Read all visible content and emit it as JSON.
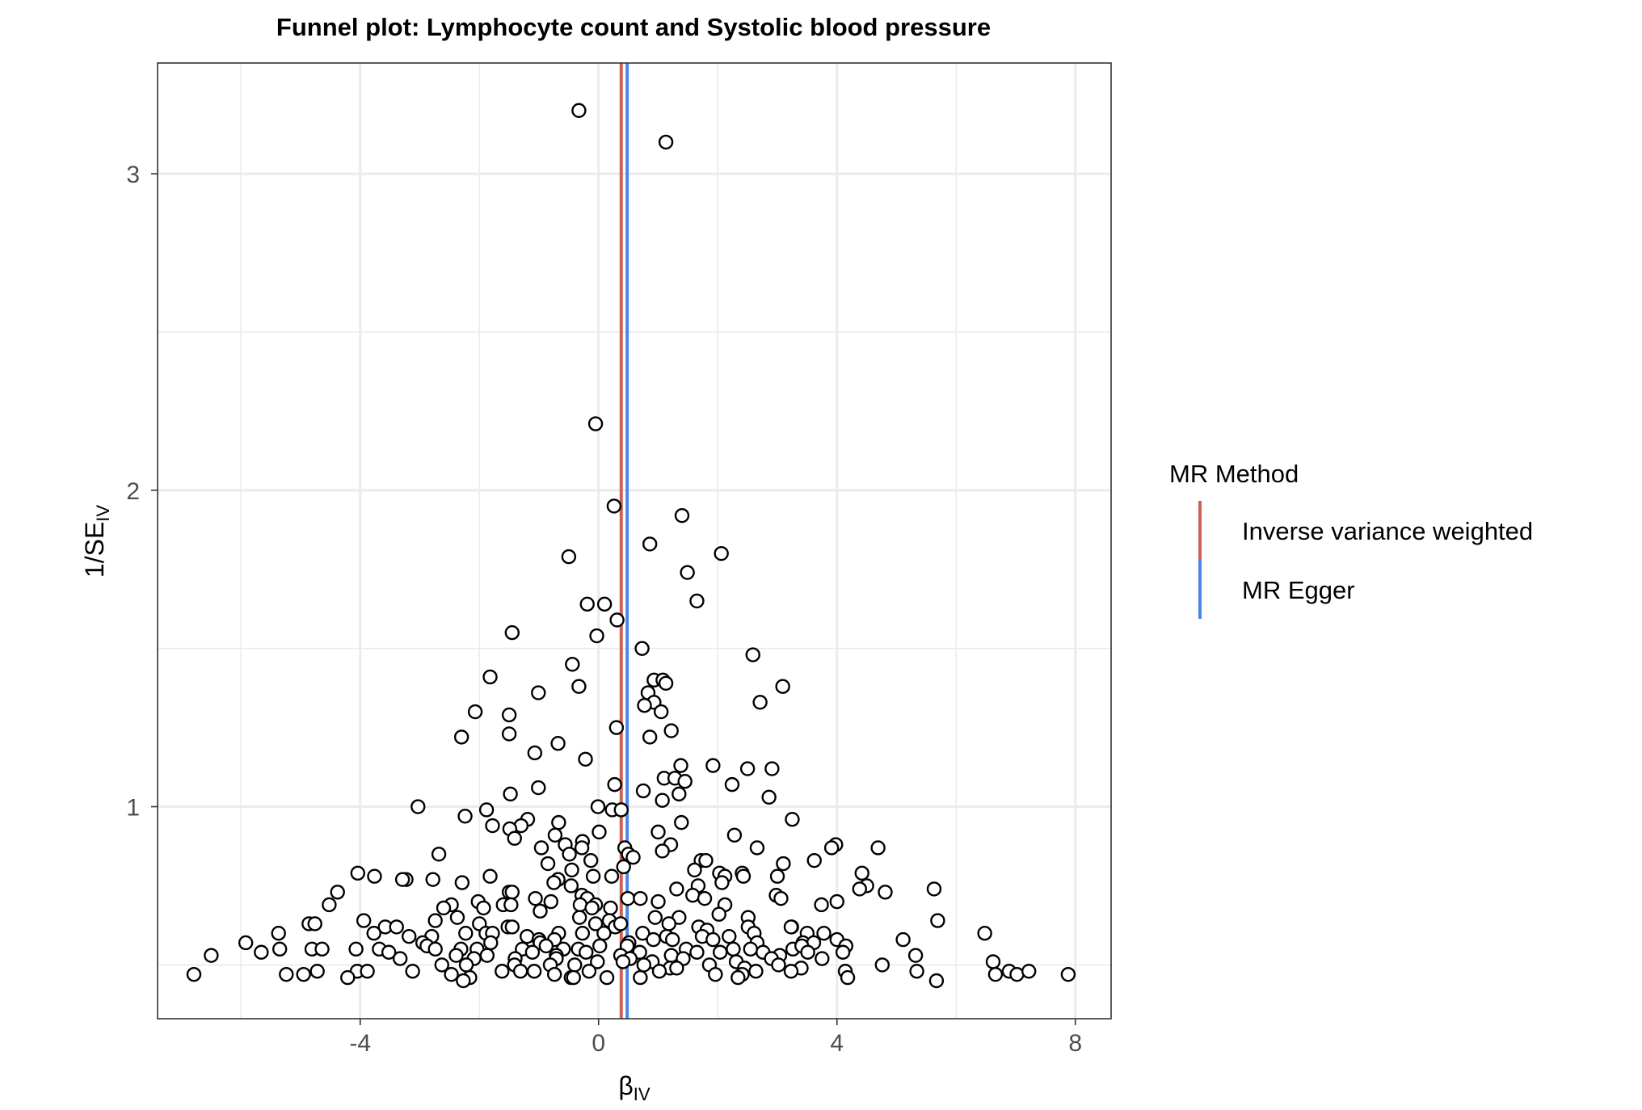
{
  "chart_data": {
    "type": "scatter",
    "title": "Funnel plot: Lymphocyte count and Systolic blood pressure",
    "xlabel": {
      "main": "β",
      "sub": "IV"
    },
    "ylabel": {
      "main": "1/SE",
      "sub": "IV"
    },
    "xlim": [
      -7.4,
      8.6
    ],
    "ylim": [
      0.33,
      3.35
    ],
    "x_ticks": [
      -4,
      0,
      4,
      8
    ],
    "x_tick_labels": [
      "-4",
      "0",
      "4",
      "8"
    ],
    "y_ticks": [
      1,
      2,
      3
    ],
    "y_tick_labels": [
      "1",
      "2",
      "3"
    ],
    "grid": true,
    "legend": {
      "title": "MR Method",
      "position": "right",
      "entries": [
        {
          "label": "Inverse variance weighted",
          "color": "#CD6155"
        },
        {
          "label": "MR Egger",
          "color": "#4A86E8"
        }
      ]
    },
    "lines": [
      {
        "name": "Inverse variance weighted",
        "x": 0.38,
        "color": "#CD6155"
      },
      {
        "name": "MR Egger",
        "x": 0.48,
        "color": "#4A86E8"
      }
    ],
    "point_style": {
      "fill": "#ffffff",
      "stroke": "#000000"
    },
    "points": [
      [
        -0.33,
        3.2
      ],
      [
        1.13,
        3.1
      ],
      [
        -0.05,
        2.21
      ],
      [
        0.26,
        1.95
      ],
      [
        1.4,
        1.92
      ],
      [
        0.86,
        1.83
      ],
      [
        -0.5,
        1.79
      ],
      [
        2.06,
        1.8
      ],
      [
        1.49,
        1.74
      ],
      [
        1.65,
        1.65
      ],
      [
        -0.19,
        1.64
      ],
      [
        0.1,
        1.64
      ],
      [
        0.31,
        1.59
      ],
      [
        -1.45,
        1.55
      ],
      [
        -0.03,
        1.54
      ],
      [
        0.73,
        1.5
      ],
      [
        2.59,
        1.48
      ],
      [
        -0.44,
        1.45
      ],
      [
        -1.82,
        1.41
      ],
      [
        0.93,
        1.4
      ],
      [
        1.08,
        1.4
      ],
      [
        1.13,
        1.39
      ],
      [
        -0.33,
        1.38
      ],
      [
        3.09,
        1.38
      ],
      [
        0.83,
        1.36
      ],
      [
        -1.01,
        1.36
      ],
      [
        0.93,
        1.33
      ],
      [
        2.71,
        1.33
      ],
      [
        0.77,
        1.32
      ],
      [
        1.05,
        1.3
      ],
      [
        -2.07,
        1.3
      ],
      [
        -1.5,
        1.29
      ],
      [
        0.3,
        1.25
      ],
      [
        1.22,
        1.24
      ],
      [
        -1.5,
        1.23
      ],
      [
        -2.3,
        1.22
      ],
      [
        0.86,
        1.22
      ],
      [
        -0.68,
        1.2
      ],
      [
        -1.07,
        1.17
      ],
      [
        -0.22,
        1.15
      ],
      [
        1.92,
        1.13
      ],
      [
        1.38,
        1.13
      ],
      [
        2.5,
        1.12
      ],
      [
        2.91,
        1.12
      ],
      [
        1.1,
        1.09
      ],
      [
        1.28,
        1.09
      ],
      [
        1.45,
        1.08
      ],
      [
        2.24,
        1.07
      ],
      [
        0.27,
        1.07
      ],
      [
        -1.01,
        1.06
      ],
      [
        0.75,
        1.05
      ],
      [
        -1.48,
        1.04
      ],
      [
        1.35,
        1.04
      ],
      [
        2.86,
        1.03
      ],
      [
        1.07,
        1.02
      ],
      [
        -3.03,
        1.0
      ],
      [
        -0.01,
        1.0
      ],
      [
        0.23,
        0.99
      ],
      [
        0.38,
        0.99
      ],
      [
        -1.88,
        0.99
      ],
      [
        -2.24,
        0.97
      ],
      [
        3.25,
        0.96
      ],
      [
        1.39,
        0.95
      ],
      [
        -0.67,
        0.95
      ],
      [
        -1.19,
        0.96
      ],
      [
        -1.78,
        0.94
      ],
      [
        -1.3,
        0.94
      ],
      [
        -1.49,
        0.93
      ],
      [
        1.0,
        0.92
      ],
      [
        0.01,
        0.92
      ],
      [
        -0.73,
        0.91
      ],
      [
        2.28,
        0.91
      ],
      [
        -1.41,
        0.9
      ],
      [
        -0.27,
        0.89
      ],
      [
        0.44,
        0.87
      ],
      [
        -0.56,
        0.88
      ],
      [
        -0.96,
        0.87
      ],
      [
        1.21,
        0.88
      ],
      [
        -0.28,
        0.87
      ],
      [
        2.66,
        0.87
      ],
      [
        3.98,
        0.88
      ],
      [
        4.69,
        0.87
      ],
      [
        0.5,
        0.85
      ],
      [
        1.07,
        0.86
      ],
      [
        3.91,
        0.87
      ],
      [
        -2.68,
        0.85
      ],
      [
        -0.49,
        0.85
      ],
      [
        0.58,
        0.84
      ],
      [
        -0.13,
        0.83
      ],
      [
        1.72,
        0.83
      ],
      [
        1.8,
        0.83
      ],
      [
        3.62,
        0.83
      ],
      [
        -0.85,
        0.82
      ],
      [
        3.1,
        0.82
      ],
      [
        0.42,
        0.81
      ],
      [
        1.61,
        0.8
      ],
      [
        -0.45,
        0.8
      ],
      [
        0.22,
        0.78
      ],
      [
        -0.09,
        0.78
      ],
      [
        2.03,
        0.79
      ],
      [
        2.41,
        0.79
      ],
      [
        4.42,
        0.79
      ],
      [
        2.12,
        0.78
      ],
      [
        -4.04,
        0.79
      ],
      [
        -3.76,
        0.78
      ],
      [
        -3.23,
        0.77
      ],
      [
        -1.82,
        0.78
      ],
      [
        -0.68,
        0.77
      ],
      [
        3.0,
        0.78
      ],
      [
        2.43,
        0.78
      ],
      [
        -0.75,
        0.76
      ],
      [
        -3.29,
        0.77
      ],
      [
        -2.78,
        0.77
      ],
      [
        -0.46,
        0.75
      ],
      [
        1.67,
        0.75
      ],
      [
        2.07,
        0.76
      ],
      [
        4.5,
        0.75
      ],
      [
        4.38,
        0.74
      ],
      [
        4.81,
        0.73
      ],
      [
        -4.38,
        0.73
      ],
      [
        -2.29,
        0.76
      ],
      [
        1.31,
        0.74
      ],
      [
        -1.5,
        0.73
      ],
      [
        -0.28,
        0.72
      ],
      [
        1.58,
        0.72
      ],
      [
        -1.45,
        0.73
      ],
      [
        1.78,
        0.71
      ],
      [
        -0.19,
        0.71
      ],
      [
        0.49,
        0.71
      ],
      [
        0.7,
        0.71
      ],
      [
        1.0,
        0.7
      ],
      [
        2.98,
        0.72
      ],
      [
        3.06,
        0.71
      ],
      [
        -1.06,
        0.71
      ],
      [
        -0.8,
        0.7
      ],
      [
        5.63,
        0.74
      ],
      [
        -2.47,
        0.69
      ],
      [
        -2.02,
        0.7
      ],
      [
        -0.31,
        0.69
      ],
      [
        -4.52,
        0.69
      ],
      [
        -2.6,
        0.68
      ],
      [
        -1.93,
        0.68
      ],
      [
        -1.6,
        0.69
      ],
      [
        -0.05,
        0.69
      ],
      [
        2.12,
        0.69
      ],
      [
        4.0,
        0.7
      ],
      [
        3.74,
        0.69
      ],
      [
        -1.47,
        0.69
      ],
      [
        0.2,
        0.68
      ],
      [
        2.02,
        0.66
      ],
      [
        2.51,
        0.65
      ],
      [
        -0.98,
        0.67
      ],
      [
        -0.11,
        0.68
      ],
      [
        -2.37,
        0.65
      ],
      [
        -0.32,
        0.65
      ],
      [
        0.18,
        0.64
      ],
      [
        0.95,
        0.65
      ],
      [
        -2.74,
        0.64
      ],
      [
        -2.0,
        0.63
      ],
      [
        1.35,
        0.65
      ],
      [
        -3.94,
        0.64
      ],
      [
        -4.86,
        0.63
      ],
      [
        -4.76,
        0.63
      ],
      [
        -3.58,
        0.62
      ],
      [
        -3.39,
        0.62
      ],
      [
        -1.52,
        0.62
      ],
      [
        -1.45,
        0.62
      ],
      [
        -0.05,
        0.63
      ],
      [
        0.28,
        0.62
      ],
      [
        0.37,
        0.63
      ],
      [
        1.18,
        0.63
      ],
      [
        1.68,
        0.62
      ],
      [
        2.51,
        0.62
      ],
      [
        3.24,
        0.62
      ],
      [
        5.69,
        0.64
      ],
      [
        6.48,
        0.6
      ],
      [
        -5.37,
        0.6
      ],
      [
        -3.77,
        0.6
      ],
      [
        -3.18,
        0.59
      ],
      [
        -2.8,
        0.59
      ],
      [
        -2.23,
        0.6
      ],
      [
        -1.89,
        0.6
      ],
      [
        -1.78,
        0.6
      ],
      [
        -1.2,
        0.59
      ],
      [
        -0.67,
        0.6
      ],
      [
        -0.27,
        0.6
      ],
      [
        0.09,
        0.6
      ],
      [
        0.74,
        0.6
      ],
      [
        1.14,
        0.59
      ],
      [
        1.82,
        0.61
      ],
      [
        2.19,
        0.59
      ],
      [
        2.61,
        0.6
      ],
      [
        3.23,
        0.62
      ],
      [
        3.5,
        0.6
      ],
      [
        3.78,
        0.6
      ],
      [
        1.74,
        0.59
      ],
      [
        -0.74,
        0.58
      ],
      [
        -2.95,
        0.57
      ],
      [
        -1.81,
        0.57
      ],
      [
        -1.0,
        0.58
      ],
      [
        -0.98,
        0.57
      ],
      [
        0.51,
        0.57
      ],
      [
        0.92,
        0.58
      ],
      [
        1.24,
        0.58
      ],
      [
        1.92,
        0.58
      ],
      [
        2.66,
        0.57
      ],
      [
        3.43,
        0.57
      ],
      [
        3.61,
        0.57
      ],
      [
        4.0,
        0.58
      ],
      [
        5.11,
        0.58
      ],
      [
        -5.92,
        0.57
      ],
      [
        -5.35,
        0.55
      ],
      [
        -4.81,
        0.55
      ],
      [
        -4.07,
        0.55
      ],
      [
        -3.68,
        0.55
      ],
      [
        -2.88,
        0.56
      ],
      [
        -2.74,
        0.55
      ],
      [
        -2.31,
        0.55
      ],
      [
        -2.04,
        0.55
      ],
      [
        -1.28,
        0.55
      ],
      [
        -0.88,
        0.56
      ],
      [
        -0.59,
        0.55
      ],
      [
        -0.34,
        0.55
      ],
      [
        0.02,
        0.56
      ],
      [
        0.48,
        0.56
      ],
      [
        1.47,
        0.55
      ],
      [
        2.26,
        0.55
      ],
      [
        2.55,
        0.55
      ],
      [
        3.26,
        0.55
      ],
      [
        3.41,
        0.56
      ],
      [
        4.15,
        0.56
      ],
      [
        -6.5,
        0.53
      ],
      [
        -5.66,
        0.54
      ],
      [
        -4.64,
        0.55
      ],
      [
        -3.52,
        0.54
      ],
      [
        -2.39,
        0.53
      ],
      [
        -1.87,
        0.53
      ],
      [
        -1.11,
        0.54
      ],
      [
        -0.71,
        0.53
      ],
      [
        -0.21,
        0.54
      ],
      [
        0.37,
        0.53
      ],
      [
        0.69,
        0.54
      ],
      [
        1.22,
        0.53
      ],
      [
        1.65,
        0.54
      ],
      [
        2.04,
        0.54
      ],
      [
        2.76,
        0.54
      ],
      [
        3.04,
        0.53
      ],
      [
        3.51,
        0.54
      ],
      [
        4.1,
        0.54
      ],
      [
        5.32,
        0.53
      ],
      [
        -3.33,
        0.52
      ],
      [
        -2.09,
        0.52
      ],
      [
        -1.4,
        0.52
      ],
      [
        -0.71,
        0.52
      ],
      [
        -0.02,
        0.51
      ],
      [
        0.53,
        0.52
      ],
      [
        0.9,
        0.51
      ],
      [
        1.42,
        0.52
      ],
      [
        2.31,
        0.51
      ],
      [
        2.9,
        0.52
      ],
      [
        3.75,
        0.52
      ],
      [
        6.62,
        0.51
      ],
      [
        -2.63,
        0.5
      ],
      [
        -2.22,
        0.5
      ],
      [
        -1.41,
        0.5
      ],
      [
        -0.81,
        0.5
      ],
      [
        -0.4,
        0.5
      ],
      [
        0.41,
        0.51
      ],
      [
        0.76,
        0.5
      ],
      [
        1.2,
        0.49
      ],
      [
        1.86,
        0.5
      ],
      [
        2.45,
        0.49
      ],
      [
        3.02,
        0.5
      ],
      [
        3.4,
        0.49
      ],
      [
        4.76,
        0.5
      ],
      [
        -6.79,
        0.47
      ],
      [
        -5.24,
        0.47
      ],
      [
        -4.95,
        0.47
      ],
      [
        -4.72,
        0.48
      ],
      [
        -4.05,
        0.48
      ],
      [
        -3.88,
        0.48
      ],
      [
        -3.12,
        0.48
      ],
      [
        -2.47,
        0.47
      ],
      [
        -2.16,
        0.46
      ],
      [
        -1.62,
        0.48
      ],
      [
        -1.31,
        0.48
      ],
      [
        -1.08,
        0.48
      ],
      [
        -0.74,
        0.47
      ],
      [
        -0.46,
        0.46
      ],
      [
        -0.16,
        0.48
      ],
      [
        0.14,
        0.46
      ],
      [
        0.7,
        0.46
      ],
      [
        1.02,
        0.48
      ],
      [
        1.31,
        0.49
      ],
      [
        1.96,
        0.47
      ],
      [
        2.41,
        0.47
      ],
      [
        2.64,
        0.48
      ],
      [
        3.23,
        0.48
      ],
      [
        4.14,
        0.48
      ],
      [
        4.18,
        0.46
      ],
      [
        5.34,
        0.48
      ],
      [
        6.66,
        0.47
      ],
      [
        6.89,
        0.48
      ],
      [
        7.02,
        0.47
      ],
      [
        7.22,
        0.48
      ],
      [
        7.88,
        0.47
      ],
      [
        -4.21,
        0.46
      ],
      [
        -2.27,
        0.45
      ],
      [
        -0.42,
        0.46
      ],
      [
        2.34,
        0.46
      ],
      [
        5.67,
        0.45
      ]
    ]
  }
}
